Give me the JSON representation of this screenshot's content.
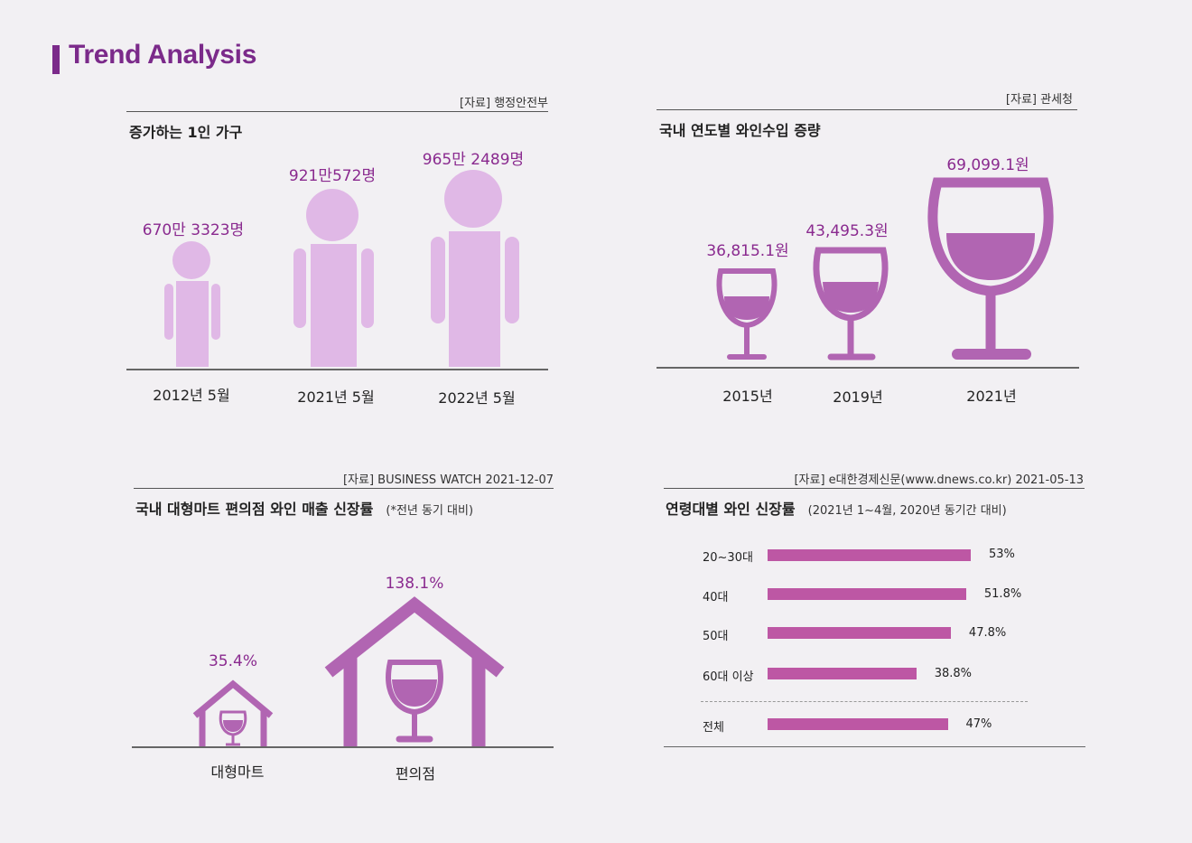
{
  "title": "Trend Analysis",
  "colors": {
    "accent": "#7b2a8a",
    "person": "#e0b8e6",
    "wine": "#b165b2",
    "bar": "#bd57a4",
    "value": "#8a2a8f"
  },
  "chart_data": [
    {
      "type": "bar",
      "title": "증가하는 1인 가구",
      "source": "[자료] 행정안전부",
      "categories": [
        "2012년 5월",
        "2021년 5월",
        "2022년 5월"
      ],
      "values": [
        6703323,
        9210572,
        9652489
      ],
      "value_labels": [
        "670만 3323명",
        "921만572명",
        "965만 2489명"
      ]
    },
    {
      "type": "bar",
      "title": "국내 연도별 와인수입 증량",
      "source": "[자료] 관세청",
      "categories": [
        "2015년",
        "2019년",
        "2021년"
      ],
      "values": [
        36815.1,
        43495.3,
        69099.1
      ],
      "value_labels": [
        "36,815.1원",
        "43,495.3원",
        "69,099.1원"
      ]
    },
    {
      "type": "bar",
      "title": "국내 대형마트 편의점 와인 매출 신장률",
      "subtitle": "(*전년 동기 대비)",
      "source": "[자료] BUSINESS WATCH 2021-12-07",
      "categories": [
        "대형마트",
        "편의점"
      ],
      "values": [
        35.4,
        138.1
      ],
      "value_labels": [
        "35.4%",
        "138.1%"
      ]
    },
    {
      "type": "bar",
      "orientation": "horizontal",
      "title": "연령대별 와인 신장률",
      "subtitle": "(2021년 1~4월, 2020년 동기간 대비)",
      "source": "[자료] e대한경제신문(www.dnews.co.kr) 2021-05-13",
      "categories": [
        "20~30대",
        "40대",
        "50대",
        "60대 이상",
        "전체"
      ],
      "values": [
        53,
        51.8,
        47.8,
        38.8,
        47
      ],
      "value_labels": [
        "53%",
        "51.8%",
        "47.8%",
        "38.8%",
        "47%"
      ],
      "xlim": [
        0,
        53
      ]
    }
  ]
}
